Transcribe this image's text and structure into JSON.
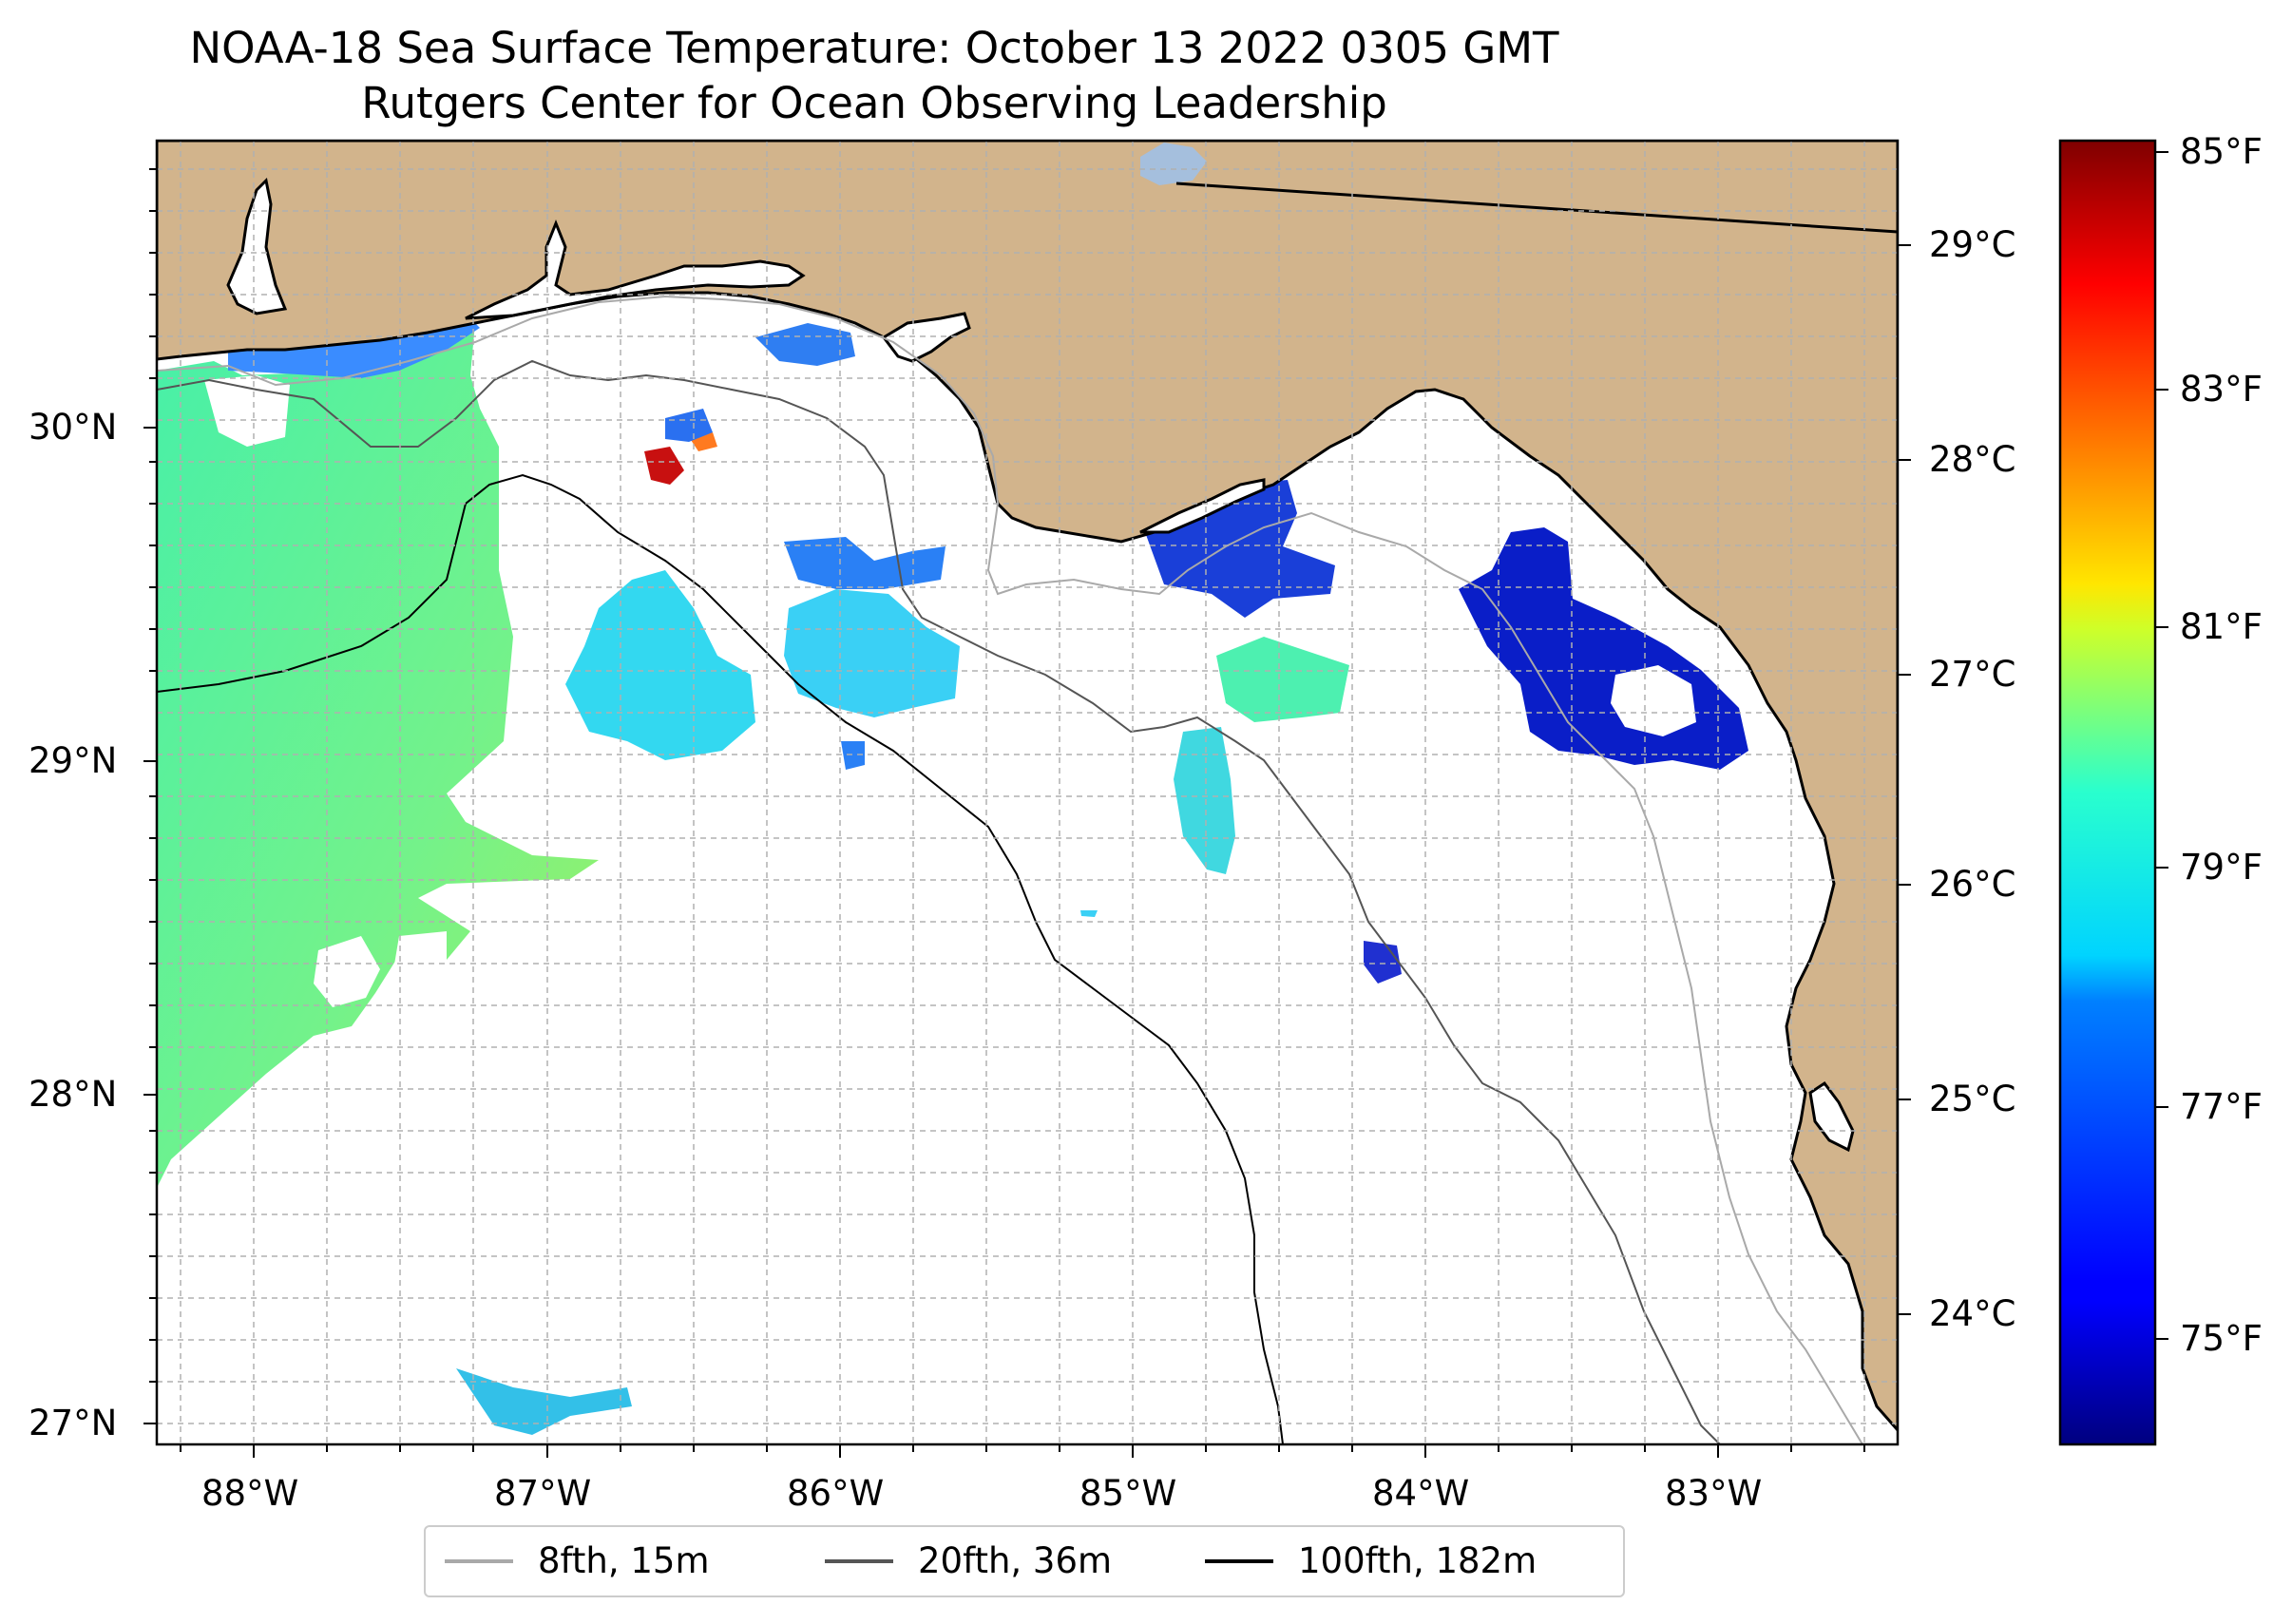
{
  "title": {
    "line1": "NOAA-18 Sea Surface Temperature: October 13 2022 0305 GMT",
    "line2": "Rutgers Center for Ocean Observing Leadership"
  },
  "map": {
    "region": "Northeastern Gulf of Mexico",
    "lon_range": [
      -88.33,
      -82.37
    ],
    "lat_range": [
      26.94,
      30.86
    ],
    "land_color": "#d2b48c",
    "lake_color": "#a5bfdd",
    "ocean_color": "#ffffff",
    "grid": true,
    "lon_ticks": [
      {
        "value": -88,
        "label": "88°W"
      },
      {
        "value": -87,
        "label": "87°W"
      },
      {
        "value": -86,
        "label": "86°W"
      },
      {
        "value": -85,
        "label": "85°W"
      },
      {
        "value": -84,
        "label": "84°W"
      },
      {
        "value": -83,
        "label": "83°W"
      }
    ],
    "lat_ticks": [
      {
        "value": 30,
        "label": "30°N"
      },
      {
        "value": 29,
        "label": "29°N"
      },
      {
        "value": 28,
        "label": "28°N"
      },
      {
        "value": 27,
        "label": "27°N"
      }
    ]
  },
  "colorbar": {
    "colormap": "jet",
    "celsius_range": [
      23.4,
      29.5
    ],
    "celsius_ticks": [
      {
        "value": 24,
        "label": "24°C"
      },
      {
        "value": 25,
        "label": "25°C"
      },
      {
        "value": 26,
        "label": "26°C"
      },
      {
        "value": 27,
        "label": "27°C"
      },
      {
        "value": 28,
        "label": "28°C"
      },
      {
        "value": 29,
        "label": "29°C"
      }
    ],
    "fahrenheit_ticks": [
      {
        "value": 75,
        "label": "75°F"
      },
      {
        "value": 77,
        "label": "77°F"
      },
      {
        "value": 79,
        "label": "79°F"
      },
      {
        "value": 81,
        "label": "81°F"
      },
      {
        "value": 83,
        "label": "83°F"
      },
      {
        "value": 85,
        "label": "85°F"
      }
    ]
  },
  "legend": {
    "placement": "bottom-center",
    "items": [
      {
        "label": "8fth, 15m",
        "color": "#a9a9a9"
      },
      {
        "label": "20fth, 36m",
        "color": "#555555"
      },
      {
        "label": "100fth, 182m",
        "color": "#000000"
      }
    ]
  }
}
